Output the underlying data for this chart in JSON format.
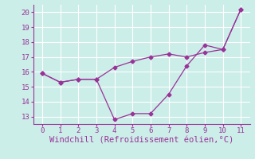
{
  "x": [
    0,
    1,
    2,
    3,
    4,
    5,
    6,
    7,
    8,
    9,
    10,
    11
  ],
  "line1": [
    15.9,
    15.3,
    15.5,
    15.5,
    16.3,
    16.7,
    17.0,
    17.2,
    17.0,
    17.3,
    17.5,
    20.2
  ],
  "line2": [
    15.9,
    15.3,
    15.5,
    15.5,
    12.8,
    13.2,
    13.2,
    14.5,
    16.4,
    17.8,
    17.5,
    20.2
  ],
  "line_color": "#993399",
  "marker": "D",
  "marker_size": 2.5,
  "xlabel": "Windchill (Refroidissement éolien,°C)",
  "xlim": [
    -0.5,
    11.5
  ],
  "ylim": [
    12.5,
    20.5
  ],
  "yticks": [
    13,
    14,
    15,
    16,
    17,
    18,
    19,
    20
  ],
  "xticks": [
    0,
    1,
    2,
    3,
    4,
    5,
    6,
    7,
    8,
    9,
    10,
    11
  ],
  "bg_color": "#cceee8",
  "grid_color": "#ffffff",
  "tick_color": "#993399",
  "label_color": "#993399",
  "xlabel_fontsize": 7.5,
  "tick_fontsize": 6.5
}
